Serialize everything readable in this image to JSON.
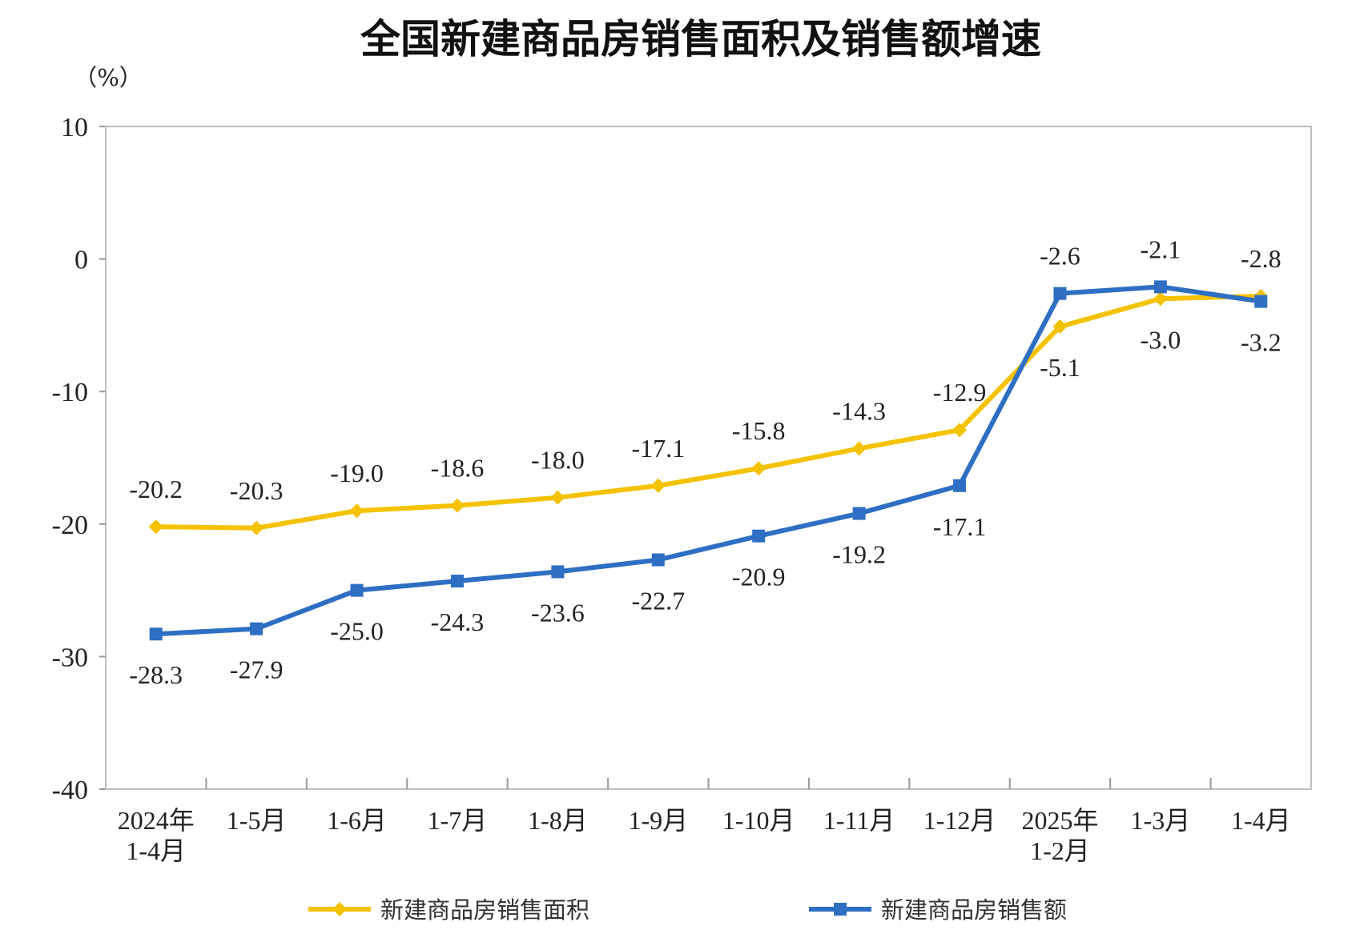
{
  "chart_data": {
    "type": "line",
    "title": "全国新建商品房销售面积及销售额增速",
    "unit_label": "（%）",
    "categories": [
      [
        "2024年",
        "1-4月"
      ],
      [
        "1-5月"
      ],
      [
        "1-6月"
      ],
      [
        "1-7月"
      ],
      [
        "1-8月"
      ],
      [
        "1-9月"
      ],
      [
        "1-10月"
      ],
      [
        "1-11月"
      ],
      [
        "1-12月"
      ],
      [
        "2025年",
        "1-2月"
      ],
      [
        "1-3月"
      ],
      [
        "1-4月"
      ]
    ],
    "ylim": [
      -40,
      10
    ],
    "yticks": [
      10,
      0,
      -10,
      -20,
      -30,
      -40
    ],
    "grid": false,
    "legend_position": "bottom",
    "series": [
      {
        "name": "新建商品房销售面积",
        "color": "#F5C200",
        "marker": "diamond",
        "values": [
          -20.2,
          -20.3,
          -19.0,
          -18.6,
          -18.0,
          -17.1,
          -15.8,
          -14.3,
          -12.9,
          -5.1,
          -3.0,
          -2.8
        ],
        "labels": [
          "-20.2",
          "-20.3",
          "-19.0",
          "-18.6",
          "-18.0",
          "-17.1",
          "-15.8",
          "-14.3",
          "-12.9",
          "-5.1",
          "-3.0",
          "-2.8"
        ]
      },
      {
        "name": "新建商品房销售额",
        "color": "#2E6FC4",
        "marker": "square",
        "values": [
          -28.3,
          -27.9,
          -25.0,
          -24.3,
          -23.6,
          -22.7,
          -20.9,
          -19.2,
          -17.1,
          -2.6,
          -2.1,
          -3.2
        ],
        "labels": [
          "-28.3",
          "-27.9",
          "-25.0",
          "-24.3",
          "-23.6",
          "-22.7",
          "-20.9",
          "-19.2",
          "-17.1",
          "-2.6",
          "-2.1",
          "-3.2"
        ]
      }
    ]
  }
}
